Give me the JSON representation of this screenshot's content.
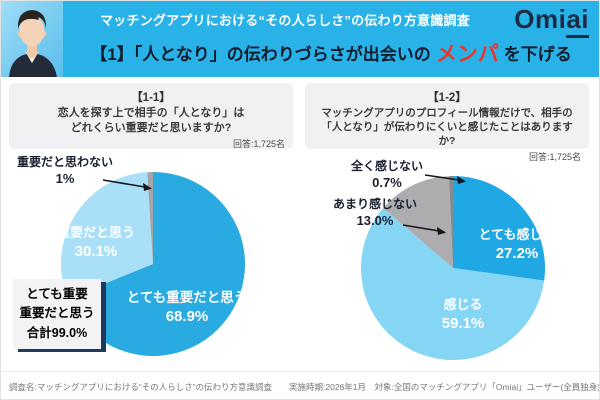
{
  "header": {
    "survey_title": "マッチングアプリにおける“その人らしさ”の伝わり方意識調査",
    "logo": {
      "text": "Omiai",
      "part1": "Omi",
      "part2": "ai"
    },
    "headline": {
      "prefix": "【1】「人となり」の伝わりづらさが出会いの",
      "highlight": "メンパ",
      "suffix": "を下げる"
    },
    "colors": {
      "banner_bg": "#29B2E8",
      "headline_text": "#131C2C",
      "highlight_red": "#E8372C",
      "logo_navy": "#1C2B45"
    }
  },
  "panels": [
    {
      "number": "【1-1】",
      "question": "恋人を探す上で相手の「人となり」は\nどれくらい重要だと思いますか?",
      "respondents": "回答:1,725名"
    },
    {
      "number": "【1-2】",
      "question": "マッチングアプリのプロフィール情報だけで、相手の\n「人となり」が伝わりにくいと感じたことはありますか?",
      "respondents": "回答:1,725名"
    }
  ],
  "chart_data": [
    {
      "type": "pie",
      "title": "恋人を探す上で相手の「人となり」はどれくらい重要だと思いますか?",
      "respondents": "回答:1,725名",
      "start_angle_deg": 0,
      "direction": "clockwise",
      "legend": "none",
      "slices": [
        {
          "label": "とても重要だと思う",
          "value": 68.9,
          "display": "68.9%",
          "color": "#29ABE2",
          "text_color": "#FFFFFF",
          "placement": "inside"
        },
        {
          "label": "重要だと思う",
          "value": 30.1,
          "display": "30.1%",
          "color": "#A9E0F8",
          "text_color": "#FFFFFF",
          "placement": "inside"
        },
        {
          "label": "重要だと思わない",
          "value": 1.0,
          "display": "1%",
          "color": "#A5A5A9",
          "text_color": "#1A2030",
          "placement": "outside-arrow"
        }
      ],
      "annotation": "とても重要\n重要だと思う\n合計99.0%"
    },
    {
      "type": "pie",
      "title": "マッチングアプリのプロフィール情報だけで、相手の「人となり」が伝わりにくいと感じたことはありますか?",
      "respondents": "回答:1,725名",
      "start_angle_deg": 0,
      "direction": "clockwise",
      "legend": "none",
      "slices": [
        {
          "label": "とても感じる",
          "value": 27.2,
          "display": "27.2%",
          "color": "#1FA8E3",
          "text_color": "#FFFFFF",
          "placement": "inside"
        },
        {
          "label": "感じる",
          "value": 59.1,
          "display": "59.1%",
          "color": "#85D6F5",
          "text_color": "#FFFFFF",
          "placement": "inside"
        },
        {
          "label": "あまり感じない",
          "value": 13.0,
          "display": "13.0%",
          "color": "#ADADAF",
          "text_color": "#1A2030",
          "placement": "outside-arrow"
        },
        {
          "label": "全く感じない",
          "value": 0.7,
          "display": "0.7%",
          "color": "#87898C",
          "text_color": "#1A2030",
          "placement": "outside-arrow"
        }
      ]
    }
  ],
  "footer": {
    "text": "調査名:マッチングアプリにおける“その人らしさ”の伝わり方意識調査　　実施時期:2026年1月　対象:全国のマッチングアプリ「Omiai」ユーザー(全員独身)"
  }
}
